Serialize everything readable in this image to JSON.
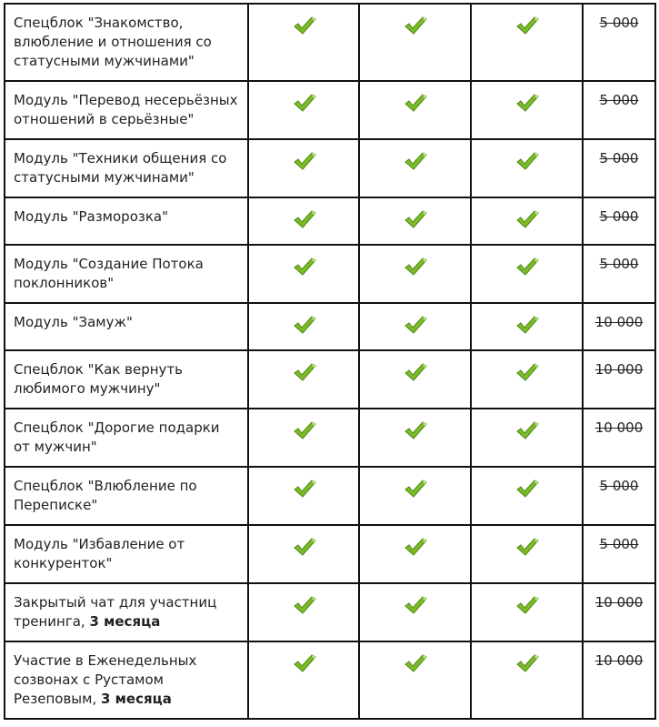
{
  "colors": {
    "check": "#7cbb2a",
    "check_dark": "#4f8a12",
    "border": "#111111"
  },
  "check_icon": "green-checkmark-icon",
  "rows": [
    {
      "name": "Спецблок \"Знакомство, влюбление и отношения со статусными мужчинами\"",
      "bold": "",
      "price": "5 000"
    },
    {
      "name": "Модуль \"Перевод несерьёзных отношений в серьёзные\"",
      "bold": "",
      "price": "5 000"
    },
    {
      "name": "Модуль \"Техники общения со статусными мужчинами\"",
      "bold": "",
      "price": "5 000"
    },
    {
      "name": "Модуль \"Разморозка\"",
      "bold": "",
      "price": "5 000"
    },
    {
      "name": "Модуль \"Создание Потока поклонников\"",
      "bold": "",
      "price": "5 000"
    },
    {
      "name": "Модуль \"Замуж\"",
      "bold": "",
      "price": "10 000"
    },
    {
      "name": "Спецблок \"Как вернуть любимого мужчину\"",
      "bold": "",
      "price": "10 000"
    },
    {
      "name": "Спецблок \"Дорогие подарки от мужчин\"",
      "bold": "",
      "price": "10 000"
    },
    {
      "name": "Спецблок \"Влюбление по Переписке\"",
      "bold": "",
      "price": "5 000"
    },
    {
      "name": "Модуль \"Избавление от конкуренток\"",
      "bold": "",
      "price": "5 000"
    },
    {
      "name": "Закрытый чат для участниц тренинга, ",
      "bold": "3 месяца",
      "price": "10 000"
    },
    {
      "name": "Участие в Еженедельных созвонах с Рустамом Резеповым, ",
      "bold": "3 месяца",
      "price": "10 000"
    }
  ]
}
